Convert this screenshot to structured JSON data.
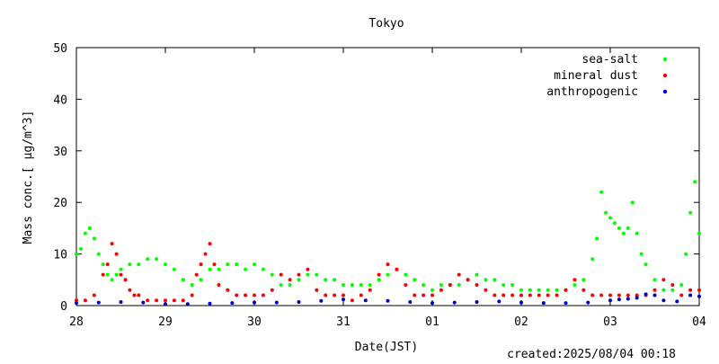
{
  "chart_data": {
    "type": "scatter",
    "title": "Tokyo",
    "xlabel": "Date(JST)",
    "ylabel": "Mass conc.[ μg/m^3]",
    "ylim": [
      0,
      50
    ],
    "yticks": [
      "0",
      "10",
      "20",
      "30",
      "40",
      "50"
    ],
    "x_tick_labels": [
      "28",
      "29",
      "30",
      "31",
      "01",
      "02",
      "03",
      "04"
    ],
    "legend_position": "top-right",
    "footer": "created:2025/08/04 00:18",
    "series": [
      {
        "name": "sea-salt",
        "color": "#00ff00",
        "x": [
          0.0,
          0.05,
          0.1,
          0.15,
          0.2,
          0.25,
          0.3,
          0.35,
          0.4,
          0.45,
          0.5,
          0.6,
          0.7,
          0.8,
          0.9,
          1.0,
          1.1,
          1.2,
          1.3,
          1.4,
          1.5,
          1.6,
          1.7,
          1.8,
          1.9,
          2.0,
          2.1,
          2.2,
          2.3,
          2.4,
          2.5,
          2.6,
          2.7,
          2.8,
          2.9,
          3.0,
          3.1,
          3.2,
          3.3,
          3.4,
          3.5,
          3.6,
          3.7,
          3.8,
          3.9,
          4.0,
          4.1,
          4.2,
          4.3,
          4.4,
          4.5,
          4.6,
          4.7,
          4.8,
          4.9,
          5.0,
          5.1,
          5.2,
          5.3,
          5.4,
          5.5,
          5.6,
          5.7,
          5.8,
          5.85,
          5.9,
          5.95,
          6.0,
          6.05,
          6.1,
          6.15,
          6.2,
          6.25,
          6.3,
          6.35,
          6.4,
          6.5,
          6.6,
          6.7,
          6.8,
          6.85,
          6.9,
          6.95,
          7.0
        ],
        "y": [
          10,
          11,
          14,
          15,
          13,
          10,
          8,
          6,
          5,
          6,
          7,
          8,
          8,
          9,
          9,
          8,
          7,
          5,
          4,
          5,
          7,
          7,
          8,
          8,
          7,
          8,
          7,
          6,
          4,
          4,
          5,
          6,
          6,
          5,
          5,
          4,
          4,
          4,
          4,
          5,
          6,
          7,
          6,
          5,
          4,
          3,
          4,
          4,
          4,
          5,
          6,
          5,
          5,
          4,
          4,
          3,
          3,
          3,
          3,
          3,
          3,
          4,
          5,
          9,
          13,
          22,
          18,
          17,
          16,
          15,
          14,
          15,
          20,
          14,
          10,
          8,
          5,
          3,
          3,
          4,
          10,
          18,
          24,
          14
        ]
      },
      {
        "name": "mineral dust",
        "color": "#ff0000",
        "x": [
          0.0,
          0.1,
          0.2,
          0.3,
          0.35,
          0.4,
          0.45,
          0.5,
          0.55,
          0.6,
          0.65,
          0.7,
          0.8,
          0.9,
          1.0,
          1.1,
          1.2,
          1.3,
          1.35,
          1.4,
          1.45,
          1.5,
          1.55,
          1.6,
          1.7,
          1.8,
          1.9,
          2.0,
          2.1,
          2.2,
          2.3,
          2.4,
          2.5,
          2.6,
          2.7,
          2.8,
          2.9,
          3.0,
          3.1,
          3.2,
          3.3,
          3.4,
          3.5,
          3.6,
          3.7,
          3.8,
          3.9,
          4.0,
          4.1,
          4.2,
          4.3,
          4.4,
          4.5,
          4.6,
          4.7,
          4.8,
          4.9,
          5.0,
          5.1,
          5.2,
          5.3,
          5.4,
          5.5,
          5.6,
          5.7,
          5.8,
          5.9,
          6.0,
          6.1,
          6.2,
          6.3,
          6.4,
          6.5,
          6.6,
          6.7,
          6.8,
          6.9,
          7.0
        ],
        "y": [
          1,
          1,
          2,
          6,
          8,
          12,
          10,
          6,
          5,
          3,
          2,
          2,
          1,
          1,
          1,
          1,
          1,
          2,
          6,
          8,
          10,
          12,
          8,
          4,
          3,
          2,
          2,
          2,
          2,
          3,
          6,
          5,
          6,
          7,
          3,
          2,
          2,
          2,
          1,
          2,
          3,
          6,
          8,
          7,
          4,
          2,
          2,
          2,
          3,
          4,
          6,
          5,
          4,
          3,
          2,
          2,
          2,
          2,
          2,
          2,
          2,
          2,
          3,
          5,
          3,
          2,
          2,
          2,
          2,
          2,
          2,
          2,
          3,
          5,
          4,
          2,
          3,
          3
        ]
      },
      {
        "name": "anthropogenic",
        "color": "#0000cc",
        "x": [
          0.0,
          0.25,
          0.5,
          0.75,
          1.0,
          1.25,
          1.5,
          1.75,
          2.0,
          2.25,
          2.5,
          2.75,
          3.0,
          3.25,
          3.5,
          3.75,
          4.0,
          4.25,
          4.5,
          4.75,
          5.0,
          5.25,
          5.5,
          5.75,
          6.0,
          6.1,
          6.2,
          6.3,
          6.4,
          6.5,
          6.6,
          6.75,
          6.9,
          7.0
        ],
        "y": [
          0.5,
          0.6,
          0.7,
          0.6,
          0.3,
          0.3,
          0.4,
          0.5,
          0.6,
          0.6,
          0.7,
          0.9,
          1.2,
          1.0,
          0.9,
          0.7,
          0.5,
          0.6,
          0.7,
          0.8,
          0.6,
          0.5,
          0.5,
          0.6,
          1.0,
          1.2,
          1.3,
          1.5,
          2.2,
          2.0,
          1.0,
          0.8,
          2.0,
          1.8
        ]
      }
    ]
  }
}
